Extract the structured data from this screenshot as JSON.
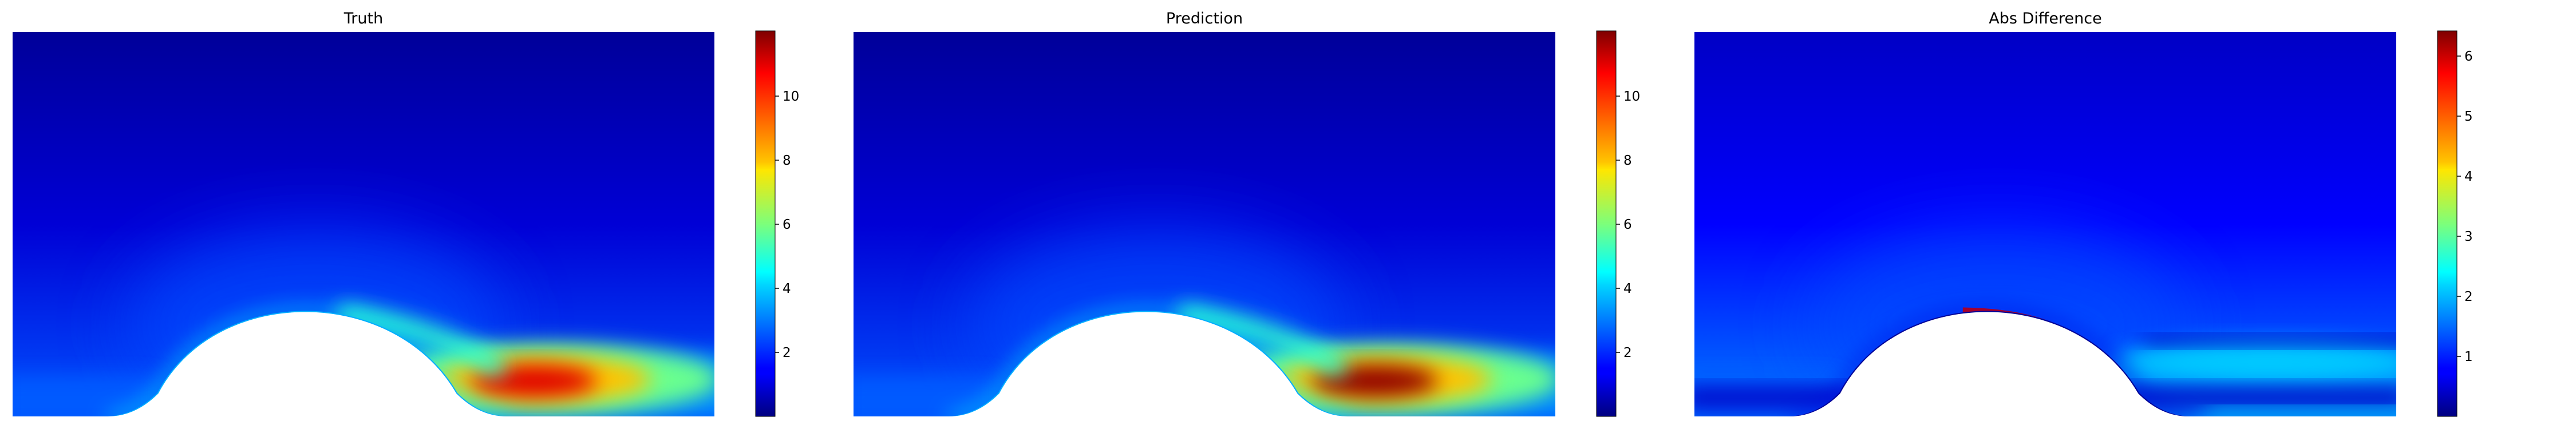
{
  "chart_data": [
    {
      "type": "heatmap",
      "title": "Truth",
      "colormap": "jet",
      "colorbar": {
        "range": [
          0,
          12
        ],
        "ticks": [
          2,
          4,
          6,
          8,
          10
        ]
      },
      "features": {
        "peak_value": 11.0,
        "peak_location": "downstream of bump, near floor",
        "free_stream_value": 0.3
      }
    },
    {
      "type": "heatmap",
      "title": "Prediction",
      "colormap": "jet",
      "colorbar": {
        "range": [
          0,
          12
        ],
        "ticks": [
          2,
          4,
          6,
          8,
          10
        ]
      },
      "features": {
        "peak_value": 11.8,
        "peak_location": "downstream of bump, near floor",
        "free_stream_value": 0.3
      }
    },
    {
      "type": "heatmap",
      "title": "Abs Difference",
      "colormap": "jet",
      "colorbar": {
        "range": [
          0,
          6.4
        ],
        "ticks": [
          1,
          2,
          3,
          4,
          5,
          6
        ]
      },
      "features": {
        "peak_value": 6.2,
        "peak_location": "bump crest",
        "free_stream_value": 0.8
      }
    }
  ]
}
